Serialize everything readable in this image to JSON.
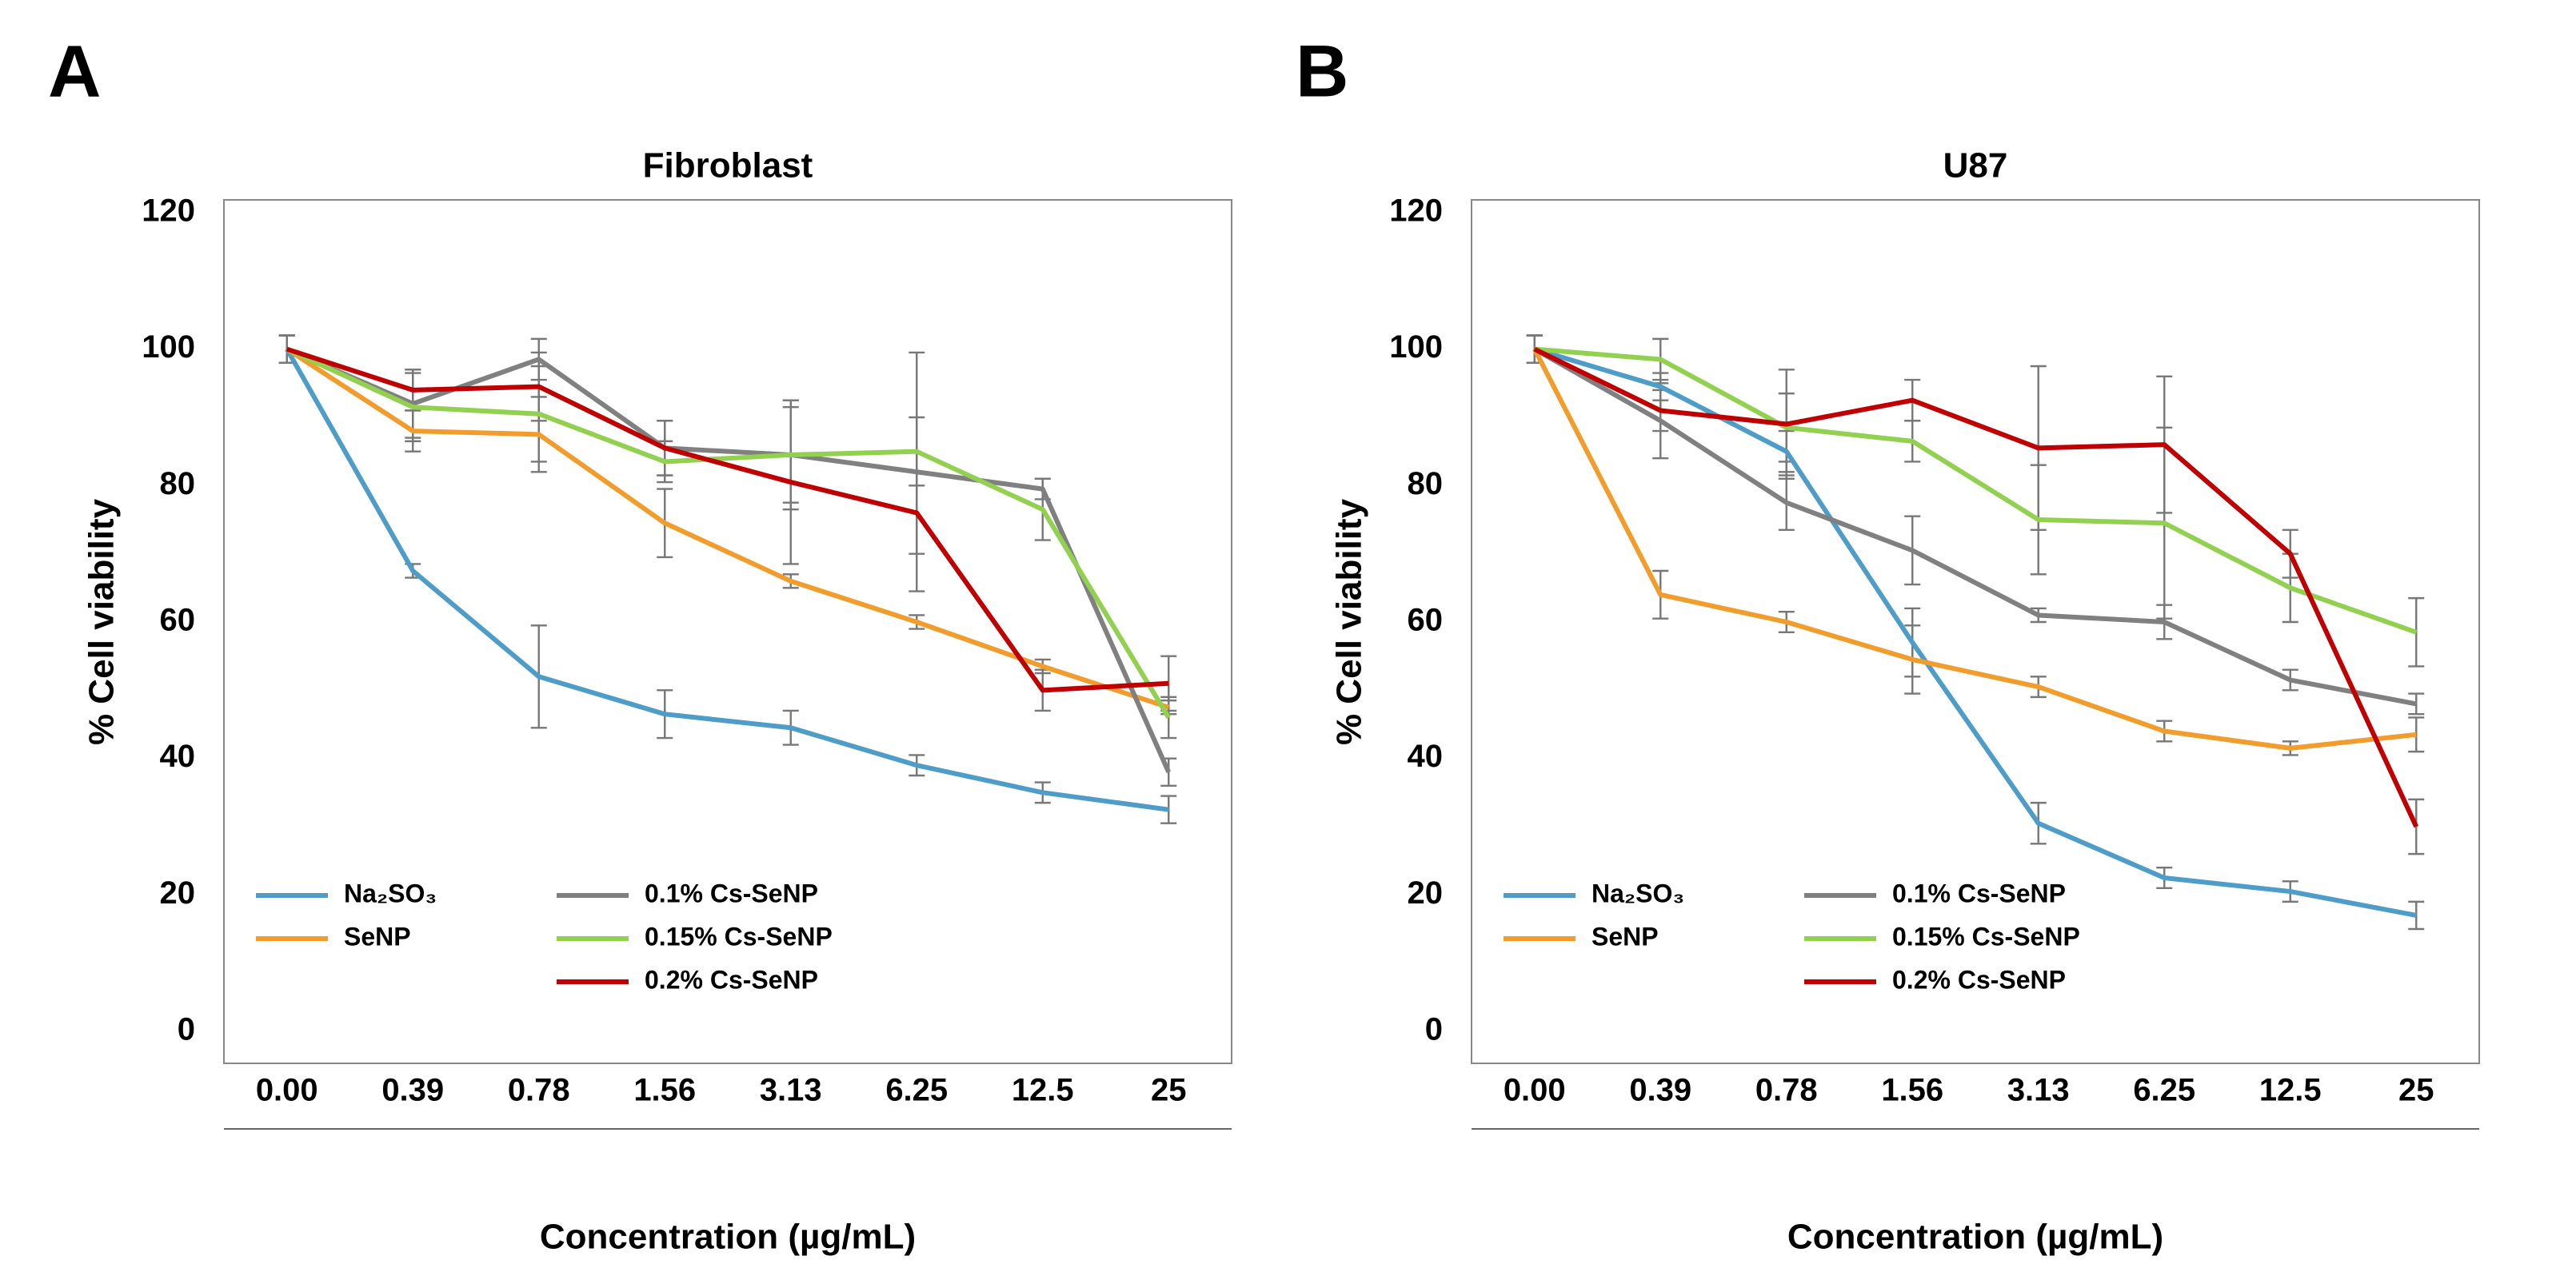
{
  "chart_data": [
    {
      "type": "line",
      "label": "A",
      "title": "Fibroblast",
      "xlabel": "Concentration (µg/mL)",
      "ylabel": "% Cell viability",
      "categories": [
        "0.00",
        "0.39",
        "0.78",
        "1.56",
        "3.13",
        "6.25",
        "12.5",
        "25"
      ],
      "ylim": [
        0,
        120
      ],
      "yticks": [
        0,
        20,
        40,
        60,
        80,
        100,
        120
      ],
      "legend": "lower left",
      "series": [
        {
          "name": "Na₂SO₃",
          "color": "#4e9dc8",
          "values": [
            100,
            67.5,
            52,
            46.5,
            44.5,
            39,
            35,
            32.5
          ],
          "errors": [
            2,
            1,
            7.5,
            3.5,
            2.5,
            1.5,
            1.5,
            2
          ]
        },
        {
          "name": "SeNP",
          "color": "#f29c2b",
          "values": [
            100,
            88,
            87.5,
            74.5,
            66,
            60,
            53.5,
            47.5
          ],
          "errors": [
            2,
            3,
            5.5,
            5,
            1,
            1,
            1,
            1
          ]
        },
        {
          "name": "0.1% Cs-SeNP",
          "color": "#808080",
          "values": [
            100,
            92,
            98.5,
            85.5,
            84.5,
            82,
            79.5,
            38
          ],
          "errors": [
            2,
            5,
            3,
            4,
            8,
            17.5,
            1.5,
            2
          ]
        },
        {
          "name": "0.15% Cs-SeNP",
          "color": "#92d050",
          "values": [
            100,
            91.5,
            90.5,
            83.5,
            84.5,
            85,
            76.5,
            46
          ],
          "errors": [
            2,
            5,
            7,
            3,
            7,
            5,
            4.5,
            3
          ]
        },
        {
          "name": "0.2% Cs-SeNP",
          "color": "#c00000",
          "values": [
            100,
            94,
            94.5,
            85.5,
            80.5,
            76,
            50,
            51
          ],
          "errors": [
            2,
            3,
            5,
            4,
            12,
            6,
            3,
            4
          ]
        }
      ]
    },
    {
      "type": "line",
      "label": "B",
      "title": "U87",
      "xlabel": "Concentration (µg/mL)",
      "ylabel": "% Cell viability",
      "categories": [
        "0.00",
        "0.39",
        "0.78",
        "1.56",
        "3.13",
        "6.25",
        "12.5",
        "25"
      ],
      "ylim": [
        0,
        120
      ],
      "yticks": [
        0,
        20,
        40,
        60,
        80,
        100,
        120
      ],
      "legend": "lower left",
      "series": [
        {
          "name": "Na₂SO₃",
          "color": "#4e9dc8",
          "values": [
            100,
            94.5,
            85,
            57,
            30.5,
            22.5,
            20.5,
            17
          ],
          "errors": [
            2,
            2,
            3,
            5,
            3,
            1.5,
            1.5,
            2
          ]
        },
        {
          "name": "SeNP",
          "color": "#f29c2b",
          "values": [
            100,
            64,
            60,
            54.5,
            50.5,
            44,
            41.5,
            43.5
          ],
          "errors": [
            2,
            3.5,
            1.5,
            5,
            1.5,
            1.5,
            1,
            2.5
          ]
        },
        {
          "name": "0.1% Cs-SeNP",
          "color": "#808080",
          "values": [
            100,
            89.5,
            77.5,
            70.5,
            61,
            60,
            51.5,
            48
          ],
          "errors": [
            2,
            5.5,
            4,
            5,
            1,
            2.5,
            1.5,
            1.5
          ]
        },
        {
          "name": "0.15% Cs-SeNP",
          "color": "#92d050",
          "values": [
            100,
            98.5,
            88.5,
            86.5,
            75,
            74.5,
            65,
            58.5
          ],
          "errors": [
            2,
            3,
            5,
            3,
            8,
            14,
            5,
            5
          ]
        },
        {
          "name": "0.2% Cs-SeNP",
          "color": "#c00000",
          "values": [
            100,
            91,
            89,
            92.5,
            85.5,
            86,
            70,
            30
          ],
          "errors": [
            2,
            3,
            8,
            3,
            12,
            10,
            3.5,
            4
          ]
        }
      ]
    }
  ]
}
